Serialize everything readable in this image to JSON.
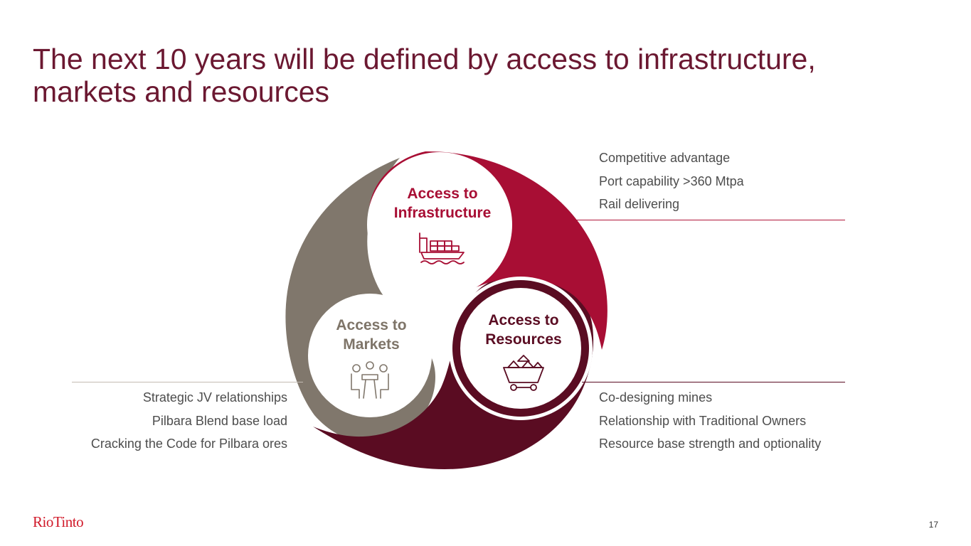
{
  "title": "The next 10 years will be defined by access to infrastructure, markets and resources",
  "colors": {
    "title": "#6b1831",
    "infrastructure": "#a80e34",
    "resources": "#5a0c22",
    "markets": "#80776c",
    "logo": "#d11a2a"
  },
  "segments": {
    "infrastructure": {
      "label": "Access to Infrastructure",
      "icon": "cargo-ship-icon",
      "points": [
        "Competitive advantage",
        "Port capability >360 Mtpa",
        "Rail delivering"
      ]
    },
    "resources": {
      "label": "Access to Resources",
      "icon": "ore-cart-icon",
      "points": [
        "Co-designing mines",
        "Relationship with Traditional Owners",
        "Resource base strength and optionality"
      ]
    },
    "markets": {
      "label": "Access to Markets",
      "icon": "meeting-table-icon",
      "points": [
        "Strategic JV relationships",
        "Pilbara Blend base load",
        "Cracking the Code for Pilbara ores"
      ]
    }
  },
  "footer": {
    "logo": "RioTinto",
    "page_number": "17"
  }
}
